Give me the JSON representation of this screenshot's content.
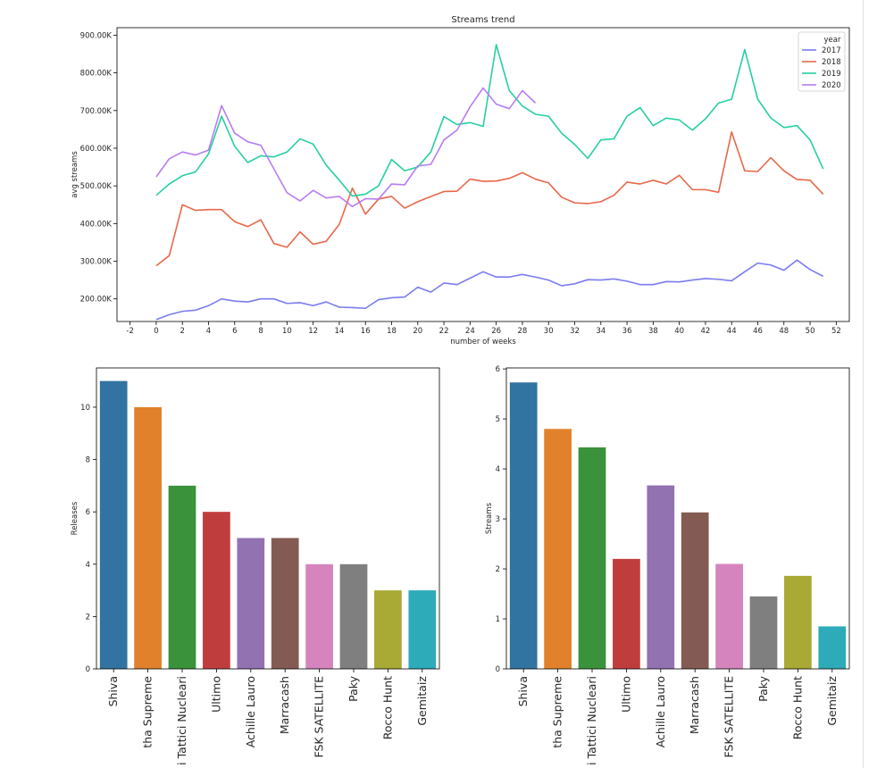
{
  "chart_data": [
    {
      "type": "line",
      "title": "Streams trend",
      "xlabel": "number of weeks",
      "ylabel": "avg streams",
      "xlim": [
        -3,
        53
      ],
      "ylim": [
        140000,
        920000
      ],
      "x_ticks": [
        -2,
        0,
        2,
        4,
        6,
        8,
        10,
        12,
        14,
        16,
        18,
        20,
        22,
        24,
        26,
        28,
        30,
        32,
        34,
        36,
        38,
        40,
        42,
        44,
        46,
        48,
        50,
        52
      ],
      "y_ticks": [
        200000,
        300000,
        400000,
        500000,
        600000,
        700000,
        800000,
        900000
      ],
      "y_tick_labels": [
        "200.00K",
        "300.00K",
        "400.00K",
        "500.00K",
        "600.00K",
        "700.00K",
        "800.00K",
        "900.00K"
      ],
      "grid": false,
      "legend": {
        "title": "year",
        "position": "top-right"
      },
      "series": [
        {
          "name": "2017",
          "color": "#7b7bf0",
          "x": [
            0,
            1,
            2,
            3,
            4,
            5,
            6,
            7,
            8,
            9,
            10,
            11,
            12,
            13,
            14,
            15,
            16,
            17,
            18,
            19,
            20,
            21,
            22,
            23,
            24,
            25,
            26,
            27,
            28,
            29,
            30,
            31,
            32,
            33,
            34,
            35,
            36,
            37,
            38,
            39,
            40,
            41,
            42,
            43,
            44,
            45,
            46,
            47,
            48,
            49,
            50,
            51
          ],
          "values": [
            145000,
            158000,
            167000,
            170000,
            182000,
            200000,
            194000,
            192000,
            200000,
            200000,
            188000,
            190000,
            182000,
            192000,
            178000,
            177000,
            175000,
            198000,
            203000,
            205000,
            231000,
            218000,
            242000,
            238000,
            255000,
            272000,
            258000,
            258000,
            265000,
            258000,
            250000,
            235000,
            240000,
            251000,
            250000,
            253000,
            247000,
            238000,
            238000,
            246000,
            245000,
            250000,
            254000,
            252000,
            248000,
            272000,
            295000,
            290000,
            276000,
            303000,
            278000,
            260000
          ]
        },
        {
          "name": "2018",
          "color": "#e8684a",
          "x": [
            0,
            1,
            2,
            3,
            4,
            5,
            6,
            7,
            8,
            9,
            10,
            11,
            12,
            13,
            14,
            15,
            16,
            17,
            18,
            19,
            20,
            21,
            22,
            23,
            24,
            25,
            26,
            27,
            28,
            29,
            30,
            31,
            32,
            33,
            34,
            35,
            36,
            37,
            38,
            39,
            40,
            41,
            42,
            43,
            44,
            45,
            46,
            47,
            48,
            49,
            50,
            51
          ],
          "values": [
            288000,
            315000,
            450000,
            435000,
            437000,
            437000,
            405000,
            392000,
            410000,
            347000,
            337000,
            378000,
            345000,
            353000,
            398000,
            494000,
            425000,
            465000,
            472000,
            441000,
            458000,
            472000,
            485000,
            486000,
            518000,
            512000,
            513000,
            520000,
            535000,
            518000,
            508000,
            470000,
            455000,
            453000,
            458000,
            475000,
            510000,
            505000,
            515000,
            505000,
            528000,
            490000,
            490000,
            483000,
            643000,
            540000,
            538000,
            575000,
            540000,
            517000,
            515000,
            478000
          ]
        },
        {
          "name": "2019",
          "color": "#26cfa2",
          "x": [
            0,
            1,
            2,
            3,
            4,
            5,
            6,
            7,
            8,
            9,
            10,
            11,
            12,
            13,
            14,
            15,
            16,
            17,
            18,
            19,
            20,
            21,
            22,
            23,
            24,
            25,
            26,
            27,
            28,
            29,
            30,
            31,
            32,
            33,
            34,
            35,
            36,
            37,
            38,
            39,
            40,
            41,
            42,
            43,
            44,
            45,
            46,
            47,
            48,
            49,
            50,
            51
          ],
          "values": [
            475000,
            505000,
            527000,
            537000,
            585000,
            685000,
            605000,
            562000,
            580000,
            577000,
            590000,
            625000,
            611000,
            555000,
            515000,
            473000,
            478000,
            500000,
            570000,
            540000,
            550000,
            590000,
            684000,
            663000,
            668000,
            658000,
            875000,
            753000,
            712000,
            690000,
            685000,
            640000,
            610000,
            573000,
            622000,
            625000,
            685000,
            708000,
            660000,
            680000,
            675000,
            648000,
            678000,
            720000,
            730000,
            862000,
            730000,
            680000,
            655000,
            660000,
            622000,
            545000
          ]
        },
        {
          "name": "2020",
          "color": "#b87cf2",
          "x": [
            0,
            1,
            2,
            3,
            4,
            5,
            6,
            7,
            8,
            9,
            10,
            11,
            12,
            13,
            14,
            15,
            16,
            17,
            18,
            19,
            20,
            21,
            22,
            23,
            24,
            25,
            26,
            27,
            28,
            29
          ],
          "values": [
            524000,
            572000,
            590000,
            582000,
            595000,
            713000,
            640000,
            617000,
            608000,
            545000,
            482000,
            460000,
            488000,
            468000,
            472000,
            445000,
            466000,
            465000,
            505000,
            503000,
            553000,
            557000,
            622000,
            648000,
            710000,
            760000,
            717000,
            705000,
            753000,
            720000
          ]
        }
      ]
    },
    {
      "type": "bar",
      "title": "",
      "xlabel": "",
      "ylabel": "Releases",
      "ylim": [
        0,
        11.5
      ],
      "y_ticks": [
        0,
        2,
        4,
        6,
        8,
        10
      ],
      "categories": [
        "Shiva",
        "tha Supreme",
        "i Tattici Nucleari",
        "Ultimo",
        "Achille Lauro",
        "Marracash",
        "FSK SATELLITE",
        "Paky",
        "Rocco Hunt",
        "Gemitaiz"
      ],
      "values": [
        11,
        10,
        7,
        6,
        5,
        5,
        4,
        4,
        3,
        3
      ],
      "colors": [
        "#3274a1",
        "#e1812c",
        "#3a923a",
        "#c03d3e",
        "#9372b2",
        "#845b53",
        "#d684bd",
        "#7f7f7f",
        "#a9aa35",
        "#2eabb8"
      ]
    },
    {
      "type": "bar",
      "title": "",
      "xlabel": "",
      "ylabel": "Streams",
      "ylim": [
        0,
        6.02
      ],
      "y_ticks": [
        0,
        1,
        2,
        3,
        4,
        5,
        6
      ],
      "categories": [
        "Shiva",
        "tha Supreme",
        "i Tattici Nucleari",
        "Ultimo",
        "Achille Lauro",
        "Marracash",
        "FSK SATELLITE",
        "Paky",
        "Rocco Hunt",
        "Gemitaiz"
      ],
      "values": [
        5.73,
        4.8,
        4.43,
        2.2,
        3.67,
        3.13,
        2.1,
        1.45,
        1.86,
        0.85
      ],
      "colors": [
        "#3274a1",
        "#e1812c",
        "#3a923a",
        "#c03d3e",
        "#9372b2",
        "#845b53",
        "#d684bd",
        "#7f7f7f",
        "#a9aa35",
        "#2eabb8"
      ]
    }
  ]
}
